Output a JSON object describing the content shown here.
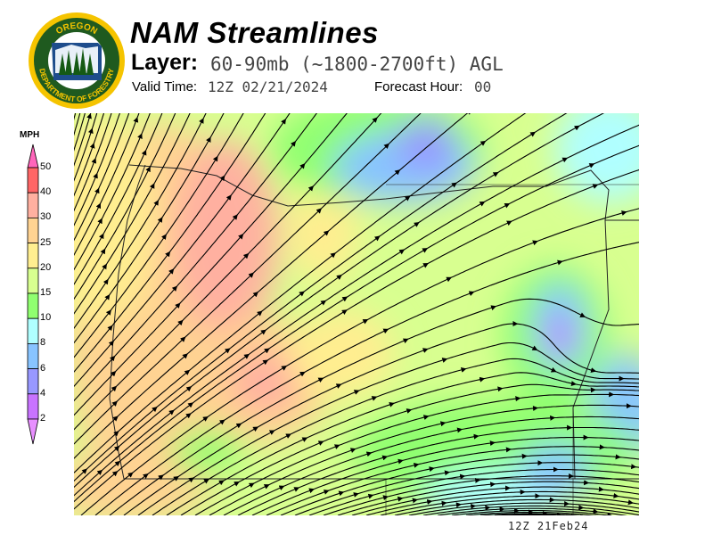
{
  "logo": {
    "text_top": "OREGON",
    "text_bottom": "DEPARTMENT OF FORESTRY",
    "colors": {
      "ring": "#f5c400",
      "field": "#1f5a1f"
    }
  },
  "header": {
    "title": "NAM Streamlines",
    "layer_label": "Layer:",
    "layer_value": "60-90mb (~1800-2700ft) AGL",
    "valid_label": "Valid Time:",
    "valid_value": "12Z 02/21/2024",
    "forecast_label": "Forecast Hour:",
    "forecast_value": "00"
  },
  "legend": {
    "unit": "MPH",
    "ticks": [
      "50",
      "40",
      "30",
      "25",
      "20",
      "15",
      "10",
      "8",
      "6",
      "4",
      "2"
    ],
    "colors": [
      "#ff6666",
      "#ffb0a0",
      "#ffd392",
      "#ffee90",
      "#d8ff90",
      "#90ff70",
      "#b0ffff",
      "#88c4ff",
      "#9898ff",
      "#c873ff"
    ],
    "over_color": "#ff66bb",
    "under_color": "#e890ff"
  },
  "map": {
    "region": "Oregon",
    "field": "wind speed streamlines"
  },
  "footer": {
    "stamp": "12Z 21Feb24"
  }
}
